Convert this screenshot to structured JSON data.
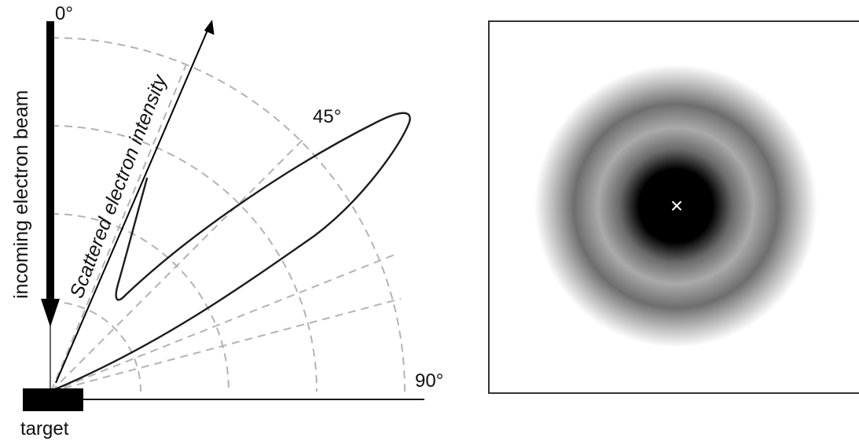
{
  "polar_plot": {
    "angle_labels": {
      "deg_0": "0°",
      "deg_45": "45°",
      "deg_90": "90°"
    },
    "beam_label": "incoming electron beam",
    "intensity_axis_label": "Scattered electron intensity",
    "target_label": "target"
  },
  "diffraction_pattern": {
    "center_marker": "×"
  }
}
